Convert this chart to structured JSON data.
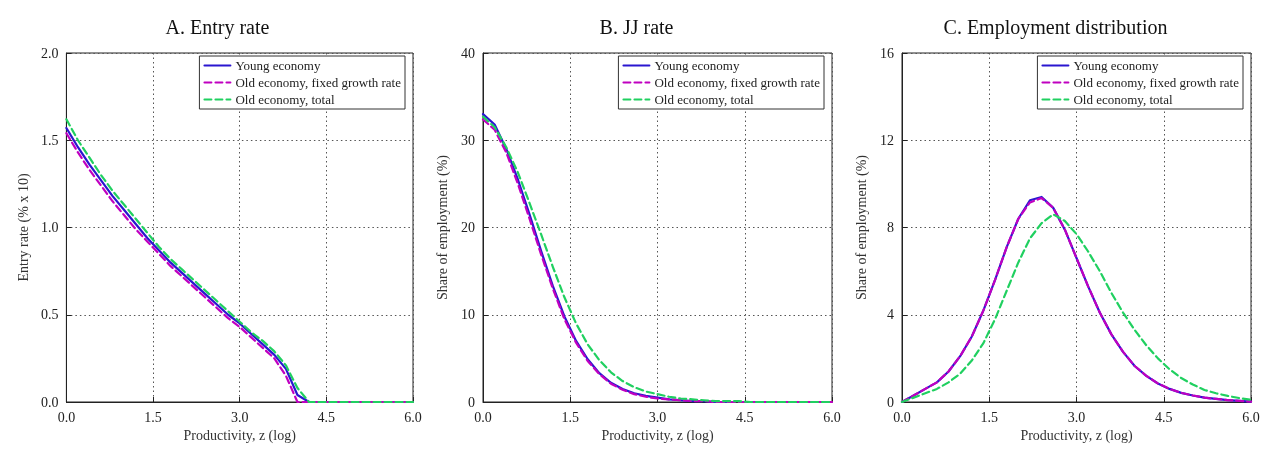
{
  "chart_data": [
    {
      "type": "line",
      "title": "A. Entry rate",
      "xlabel": "Productivity, z (log)",
      "ylabel": "Entry rate (% x 10)",
      "x": [
        0,
        0.2,
        0.4,
        0.6,
        0.8,
        1.0,
        1.2,
        1.4,
        1.6,
        1.8,
        2.0,
        2.2,
        2.4,
        2.6,
        2.8,
        3.0,
        3.2,
        3.4,
        3.6,
        3.8,
        4.0,
        4.2,
        4.4,
        4.6,
        4.8,
        5.0,
        5.2,
        5.4,
        5.6,
        5.8,
        6.0
      ],
      "series": [
        {
          "name": "Young economy",
          "color": "#2a16d0",
          "line_style": "solid",
          "values": [
            1.57,
            1.46,
            1.36,
            1.27,
            1.18,
            1.1,
            1.02,
            0.94,
            0.87,
            0.8,
            0.74,
            0.68,
            0.62,
            0.56,
            0.5,
            0.45,
            0.39,
            0.33,
            0.27,
            0.19,
            0.04,
            0,
            0,
            null,
            null,
            null,
            null,
            null,
            null,
            null,
            null
          ]
        },
        {
          "name": "Old economy, fixed growth rate",
          "color": "#c000c0",
          "line_style": "dashed",
          "values": [
            1.54,
            1.43,
            1.33,
            1.24,
            1.15,
            1.07,
            0.99,
            0.92,
            0.85,
            0.78,
            0.72,
            0.66,
            0.6,
            0.54,
            0.48,
            0.43,
            0.37,
            0.31,
            0.25,
            0.15,
            0,
            0,
            0,
            0,
            0,
            0,
            0,
            0,
            0,
            0,
            0
          ]
        },
        {
          "name": "Old economy, total",
          "color": "#20d060",
          "line_style": "dashed",
          "values": [
            1.62,
            1.5,
            1.4,
            1.3,
            1.21,
            1.13,
            1.05,
            0.97,
            0.89,
            0.82,
            0.76,
            0.7,
            0.64,
            0.58,
            0.52,
            0.46,
            0.4,
            0.35,
            0.29,
            0.21,
            0.08,
            0,
            0,
            0,
            0,
            0,
            0,
            0,
            0,
            0,
            0
          ]
        }
      ],
      "xlim": [
        0,
        6
      ],
      "xticks": [
        {
          "value": 0,
          "label": "0.0"
        },
        {
          "value": 1.5,
          "label": "1.5"
        },
        {
          "value": 3,
          "label": "3.0"
        },
        {
          "value": 4.5,
          "label": "4.5"
        },
        {
          "value": 6,
          "label": "6.0"
        }
      ],
      "ylim": [
        0,
        2
      ],
      "yticks": [
        {
          "value": 0,
          "label": "0.0"
        },
        {
          "value": 0.5,
          "label": "0.5"
        },
        {
          "value": 1,
          "label": "1.0"
        },
        {
          "value": 1.5,
          "label": "1.5"
        },
        {
          "value": 2,
          "label": "2.0"
        }
      ],
      "grid": true,
      "legend": "top right",
      "marker": "none"
    },
    {
      "type": "line",
      "title": "B. JJ rate",
      "xlabel": "Productivity, z (log)",
      "ylabel": "Share of employment (%)",
      "x": [
        0,
        0.2,
        0.4,
        0.6,
        0.8,
        1.0,
        1.2,
        1.4,
        1.6,
        1.8,
        2.0,
        2.2,
        2.4,
        2.6,
        2.8,
        3.0,
        3.2,
        3.4,
        3.6,
        3.8,
        4.0,
        4.2,
        4.4,
        4.6,
        4.8,
        5.0,
        5.2,
        5.4,
        5.6,
        5.8,
        6.0
      ],
      "series": [
        {
          "name": "Young economy",
          "color": "#2a16d0",
          "line_style": "solid",
          "values": [
            33,
            31.8,
            29,
            25.5,
            21.5,
            17.3,
            13.3,
            9.8,
            7,
            4.9,
            3.3,
            2.2,
            1.5,
            1,
            0.7,
            0.5,
            0.3,
            0.2,
            0.1,
            0.1,
            0,
            0,
            null,
            null,
            null,
            null,
            null,
            null,
            null,
            null,
            null
          ]
        },
        {
          "name": "Old economy, fixed growth rate",
          "color": "#c000c0",
          "line_style": "dashed",
          "values": [
            32.4,
            31.2,
            28.6,
            25,
            21,
            16.9,
            13,
            9.5,
            6.8,
            4.7,
            3.2,
            2.1,
            1.4,
            0.9,
            0.6,
            0.4,
            0.3,
            0.2,
            0.1,
            0.1,
            0,
            0,
            0,
            0,
            0,
            0,
            0,
            0,
            0,
            0,
            0
          ]
        },
        {
          "name": "Old economy, total",
          "color": "#20d060",
          "line_style": "dashed",
          "values": [
            32.7,
            31.5,
            29.2,
            26.3,
            22.8,
            19.2,
            15.5,
            12,
            9,
            6.6,
            4.8,
            3.4,
            2.4,
            1.7,
            1.2,
            0.9,
            0.6,
            0.4,
            0.3,
            0.2,
            0.1,
            0.1,
            0.1,
            0,
            0,
            0,
            0,
            0,
            0,
            0,
            0
          ]
        }
      ],
      "xlim": [
        0,
        6
      ],
      "xticks": [
        {
          "value": 0,
          "label": "0.0"
        },
        {
          "value": 1.5,
          "label": "1.5"
        },
        {
          "value": 3,
          "label": "3.0"
        },
        {
          "value": 4.5,
          "label": "4.5"
        },
        {
          "value": 6,
          "label": "6.0"
        }
      ],
      "ylim": [
        0,
        40
      ],
      "yticks": [
        0,
        10,
        20,
        30,
        40
      ],
      "grid": true,
      "legend": "top right",
      "marker": "none"
    },
    {
      "type": "line",
      "title": "C. Employment distribution",
      "xlabel": "Productivity, z (log)",
      "ylabel": "Share of employment (%)",
      "x": [
        0,
        0.2,
        0.4,
        0.6,
        0.8,
        1.0,
        1.2,
        1.4,
        1.6,
        1.8,
        2.0,
        2.2,
        2.4,
        2.6,
        2.8,
        3.0,
        3.2,
        3.4,
        3.6,
        3.8,
        4.0,
        4.2,
        4.4,
        4.6,
        4.8,
        5.0,
        5.2,
        5.4,
        5.6,
        5.8,
        6.0
      ],
      "series": [
        {
          "name": "Young economy",
          "color": "#2a16d0",
          "line_style": "solid",
          "values": [
            0,
            0.3,
            0.6,
            0.9,
            1.4,
            2.1,
            3.0,
            4.2,
            5.6,
            7.1,
            8.4,
            9.25,
            9.4,
            8.9,
            7.9,
            6.6,
            5.3,
            4.1,
            3.1,
            2.3,
            1.65,
            1.2,
            0.85,
            0.6,
            0.42,
            0.3,
            0.2,
            0.14,
            0.09,
            0.05,
            0.02
          ]
        },
        {
          "name": "Old economy, fixed growth rate",
          "color": "#c000c0",
          "line_style": "dashed",
          "values": [
            0,
            0.3,
            0.6,
            0.9,
            1.4,
            2.1,
            3.0,
            4.2,
            5.6,
            7.1,
            8.4,
            9.15,
            9.35,
            8.9,
            7.9,
            6.6,
            5.3,
            4.1,
            3.1,
            2.3,
            1.65,
            1.2,
            0.85,
            0.6,
            0.42,
            0.3,
            0.2,
            0.14,
            0.09,
            0.05,
            0.02
          ]
        },
        {
          "name": "Old economy, total",
          "color": "#20d060",
          "line_style": "dashed",
          "values": [
            0,
            0.2,
            0.4,
            0.6,
            0.9,
            1.3,
            1.9,
            2.7,
            3.8,
            5.1,
            6.4,
            7.5,
            8.2,
            8.6,
            8.3,
            7.7,
            6.9,
            6.0,
            5.0,
            4.1,
            3.3,
            2.6,
            2.0,
            1.5,
            1.1,
            0.8,
            0.55,
            0.4,
            0.28,
            0.18,
            0.1
          ]
        }
      ],
      "xlim": [
        0,
        6
      ],
      "xticks": [
        {
          "value": 0,
          "label": "0.0"
        },
        {
          "value": 1.5,
          "label": "1.5"
        },
        {
          "value": 3,
          "label": "3.0"
        },
        {
          "value": 4.5,
          "label": "4.5"
        },
        {
          "value": 6,
          "label": "6.0"
        }
      ],
      "ylim": [
        0,
        16
      ],
      "yticks": [
        0,
        4,
        8,
        12,
        16
      ],
      "grid": true,
      "legend": "top right",
      "marker": "none"
    }
  ]
}
